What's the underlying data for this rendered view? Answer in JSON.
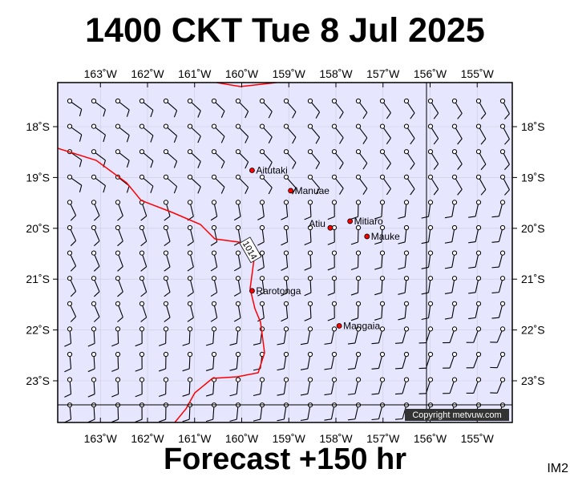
{
  "title": "1400 CKT Tue 8 Jul 2025",
  "footer": "Forecast +150 hr",
  "image_code": "IM2",
  "copyright": "Copyright metvuw.com",
  "isobar_label": "1014",
  "colors": {
    "ocean": "#e6e6ff",
    "isobar": "#ff0000",
    "island": "#ff0000",
    "barb": "#000000"
  },
  "map": {
    "lon_ticks": [
      "163˚W",
      "162˚W",
      "161˚W",
      "160˚W",
      "159˚W",
      "158˚W",
      "157˚W",
      "156˚W",
      "155˚W"
    ],
    "lat_ticks": [
      "18˚S",
      "19˚S",
      "20˚S",
      "21˚S",
      "22˚S",
      "23˚S"
    ],
    "islands": [
      {
        "name": "Aitutaki",
        "lon": -159.78,
        "lat": -18.86
      },
      {
        "name": "Manuae",
        "lon": -158.96,
        "lat": -19.26
      },
      {
        "name": "Mitiaro",
        "lon": -157.7,
        "lat": -19.86
      },
      {
        "name": "Atiu",
        "lon": -158.12,
        "lat": -19.99
      },
      {
        "name": "Mauke",
        "lon": -157.34,
        "lat": -20.16
      },
      {
        "name": "Rarotonga",
        "lon": -159.78,
        "lat": -21.23
      },
      {
        "name": "Mangaia",
        "lon": -157.93,
        "lat": -21.92
      }
    ]
  }
}
